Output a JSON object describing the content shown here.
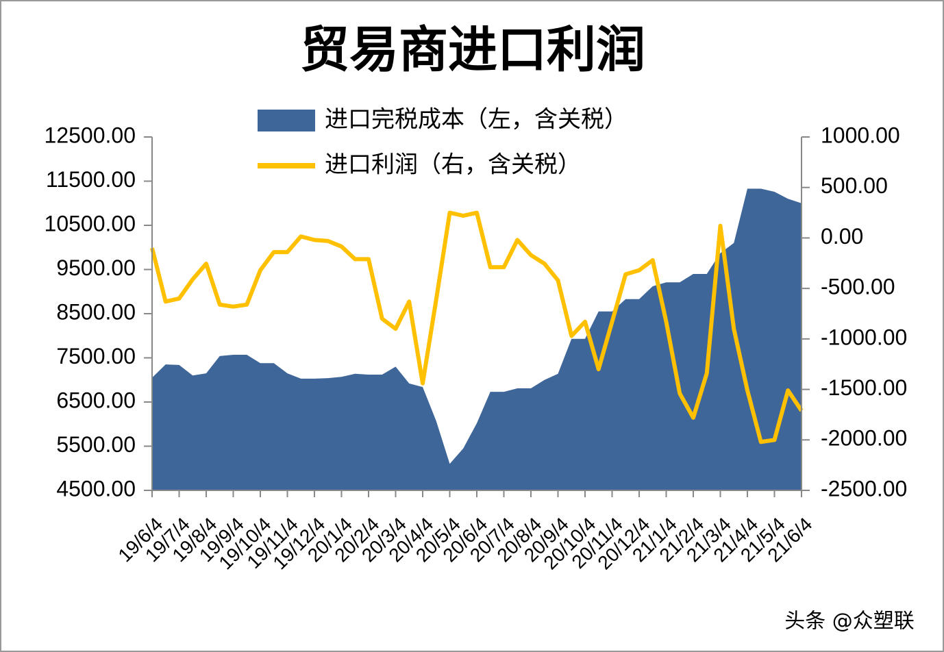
{
  "chart_data": {
    "type": "area-line",
    "title": "贸易商进口利润",
    "watermark": "头条 @众塑联",
    "categories": [
      "19/6/4",
      null,
      "19/7/4",
      null,
      "19/8/4",
      null,
      "19/9/4",
      null,
      "19/10/4",
      null,
      "19/11/4",
      null,
      "19/12/4",
      null,
      "20/1/4",
      null,
      "20/2/4",
      null,
      "20/3/4",
      null,
      "20/4/4",
      null,
      "20/5/4",
      null,
      "20/6/4",
      null,
      "20/7/4",
      null,
      "20/8/4",
      null,
      "20/9/4",
      null,
      "20/10/4",
      null,
      "20/11/4",
      null,
      "20/12/4",
      null,
      "21/1/4",
      null,
      "21/2/4",
      null,
      "21/3/4",
      null,
      "21/4/4",
      null,
      "21/5/4",
      null,
      "21/6/4"
    ],
    "series": [
      {
        "name": "进口完税成本（左，含关税）",
        "color": "#3f6699",
        "axis": "y",
        "values": [
          7050,
          7350,
          7340,
          7100,
          7150,
          7540,
          7570,
          7570,
          7380,
          7380,
          7150,
          7030,
          7030,
          7040,
          7070,
          7140,
          7120,
          7120,
          7300,
          6920,
          6840,
          6070,
          5100,
          5450,
          6020,
          6730,
          6730,
          6810,
          6810,
          7000,
          7140,
          7930,
          7930,
          8550,
          8550,
          8830,
          8830,
          9120,
          9210,
          9210,
          9400,
          9400,
          9870,
          10100,
          11330,
          11330,
          11260,
          11100,
          11000
        ]
      },
      {
        "name": "进口利润（右，含关税）",
        "color": "#ffc000",
        "axis": "y2",
        "values": [
          -100,
          -630,
          -600,
          -410,
          -255,
          -660,
          -680,
          -660,
          -320,
          -140,
          -140,
          15,
          -20,
          -30,
          -85,
          -210,
          -210,
          -800,
          -900,
          -630,
          -1440,
          -610,
          250,
          220,
          250,
          -290,
          -290,
          -20,
          -170,
          -255,
          -420,
          -970,
          -830,
          -1300,
          -830,
          -360,
          -320,
          -220,
          -830,
          -1540,
          -1780,
          -1340,
          120,
          -900,
          -1510,
          -2020,
          -2000,
          -1510,
          -1710
        ]
      }
    ],
    "ylim": [
      4500,
      12500
    ],
    "yticks": [
      {
        "value": 4500,
        "label": "4500.00"
      },
      {
        "value": 5500,
        "label": "5500.00"
      },
      {
        "value": 6500,
        "label": "6500.00"
      },
      {
        "value": 7500,
        "label": "7500.00"
      },
      {
        "value": 8500,
        "label": "8500.00"
      },
      {
        "value": 9500,
        "label": "9500.00"
      },
      {
        "value": 10500,
        "label": "10500.00"
      },
      {
        "value": 11500,
        "label": "11500.00"
      },
      {
        "value": 12500,
        "label": "12500.00"
      }
    ],
    "y2lim": [
      -2500,
      1000
    ],
    "y2ticks": [
      {
        "value": -2500,
        "label": "-2500.00"
      },
      {
        "value": -2000,
        "label": "-2000.00"
      },
      {
        "value": -1500,
        "label": "-1500.00"
      },
      {
        "value": -1000,
        "label": "-1000.00"
      },
      {
        "value": -500,
        "label": "-500.00"
      },
      {
        "value": 0,
        "label": "0.00"
      },
      {
        "value": 500,
        "label": "500.00"
      },
      {
        "value": 1000,
        "label": "1000.00"
      }
    ],
    "legend": "top"
  }
}
